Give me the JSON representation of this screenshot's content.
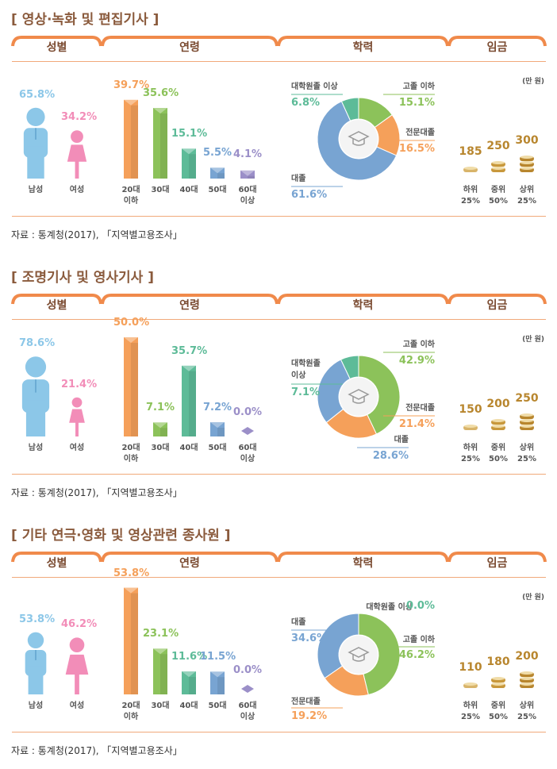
{
  "colors": {
    "orange": "#f5a05a",
    "green": "#8cc25a",
    "teal": "#5dbb98",
    "blue": "#78a4d2",
    "purple": "#9b8fc8",
    "male": "#8cc7e8",
    "female": "#f28db8",
    "gold": "#b8862e",
    "title": "#8a5a3c",
    "line": "#f1a97a"
  },
  "headers": {
    "gender": "성별",
    "age": "연령",
    "education": "학력",
    "wage": "임금"
  },
  "wage_unit": "(만 원)",
  "gender_labels": [
    "남성",
    "여성"
  ],
  "age_labels": [
    "20대\n이하",
    "30대",
    "40대",
    "50대",
    "60대\n이상"
  ],
  "wage_labels": [
    "하위\n25%",
    "중위\n50%",
    "상위\n25%"
  ],
  "source": "자료 : 통계청(2017), 「지역별고용조사」",
  "chart_data": [
    {
      "type": "mixed",
      "title": "[ 영상·녹화 및 편집기사 ]",
      "gender": {
        "male": 65.8,
        "female": 34.2,
        "male_label": "65.8%",
        "female_label": "34.2%"
      },
      "age": {
        "values": [
          39.7,
          35.6,
          15.1,
          5.5,
          4.1
        ],
        "labels": [
          "39.7%",
          "35.6%",
          "15.1%",
          "5.5%",
          "4.1%"
        ]
      },
      "education": {
        "slices": [
          {
            "name": "고졸 이하",
            "value": 15.1,
            "label": "15.1%"
          },
          {
            "name": "전문대졸",
            "value": 16.5,
            "label": "16.5%"
          },
          {
            "name": "대졸",
            "value": 61.6,
            "label": "61.6%"
          },
          {
            "name": "대학원졸 이상",
            "value": 6.8,
            "label": "6.8%"
          }
        ]
      },
      "wage": {
        "values": [
          185,
          250,
          300
        ],
        "labels": [
          "185",
          "250",
          "300"
        ]
      }
    },
    {
      "type": "mixed",
      "title": "[ 조명기사 및 영사기사 ]",
      "gender": {
        "male": 78.6,
        "female": 21.4,
        "male_label": "78.6%",
        "female_label": "21.4%"
      },
      "age": {
        "values": [
          50.0,
          7.1,
          35.7,
          7.2,
          0.0
        ],
        "labels": [
          "50.0%",
          "7.1%",
          "35.7%",
          "7.2%",
          "0.0%"
        ]
      },
      "education": {
        "slices": [
          {
            "name": "고졸 이하",
            "value": 42.9,
            "label": "42.9%"
          },
          {
            "name": "전문대졸",
            "value": 21.4,
            "label": "21.4%"
          },
          {
            "name": "대졸",
            "value": 28.6,
            "label": "28.6%"
          },
          {
            "name": "대학원졸\n이상",
            "value": 7.1,
            "label": "7.1%"
          }
        ]
      },
      "wage": {
        "values": [
          150,
          200,
          250
        ],
        "labels": [
          "150",
          "200",
          "250"
        ]
      }
    },
    {
      "type": "mixed",
      "title": "[ 기타 연극·영화 및 영상관련 종사원 ]",
      "gender": {
        "male": 53.8,
        "female": 46.2,
        "male_label": "53.8%",
        "female_label": "46.2%"
      },
      "age": {
        "values": [
          53.8,
          23.1,
          11.6,
          11.5,
          0.0
        ],
        "labels": [
          "53.8%",
          "23.1%",
          "11.6%",
          "11.5%",
          "0.0%"
        ]
      },
      "education": {
        "slices": [
          {
            "name": "고졸 이하",
            "value": 46.2,
            "label": "46.2%"
          },
          {
            "name": "전문대졸",
            "value": 19.2,
            "label": "19.2%"
          },
          {
            "name": "대졸",
            "value": 34.6,
            "label": "34.6%"
          },
          {
            "name": "대학원졸 이상",
            "value": 0.0,
            "label": "0.0%"
          }
        ]
      },
      "wage": {
        "values": [
          110,
          180,
          200
        ],
        "labels": [
          "110",
          "180",
          "200"
        ]
      }
    }
  ]
}
